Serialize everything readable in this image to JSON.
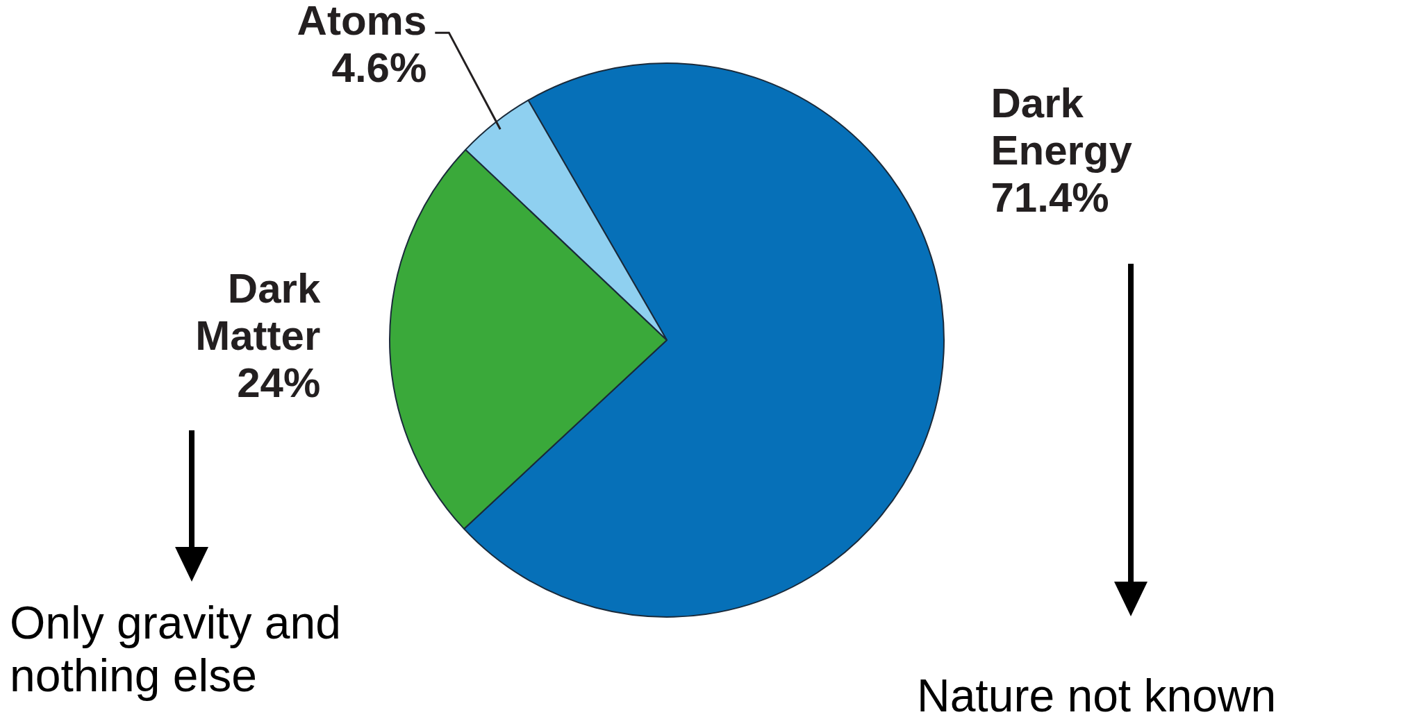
{
  "chart_data": {
    "type": "pie",
    "categories": [
      "Dark Energy",
      "Dark Matter",
      "Atoms"
    ],
    "values": [
      71.4,
      24,
      4.6
    ],
    "value_labels": [
      "71.4%",
      "24%",
      "4.6%"
    ],
    "colors": [
      "#0670b8",
      "#3aa93a",
      "#8fd0f0"
    ],
    "legend": false,
    "annotations": [
      "Only gravity and nothing else",
      "Nature not known"
    ]
  }
}
